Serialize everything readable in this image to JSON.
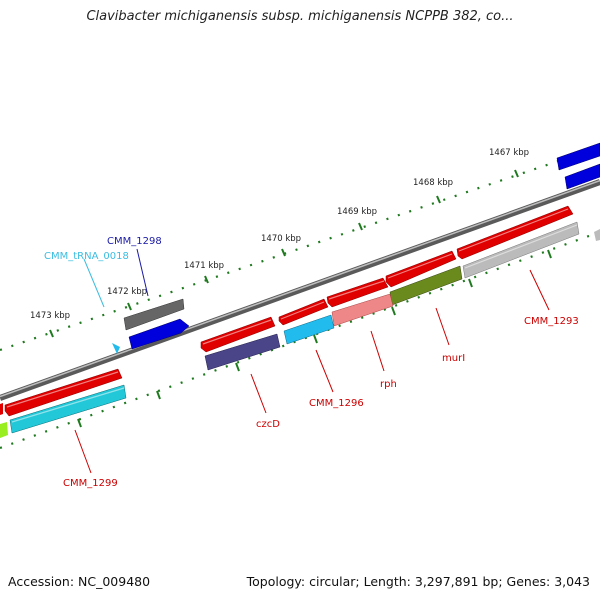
{
  "title": "Clavibacter michiganensis subsp. michiganensis NCPPB 382, co...",
  "footer": {
    "accession": "Accession: NC_009480",
    "topology": "Topology: circular; Length: 3,297,891 bp; Genes: 3,043"
  },
  "ruler_labels": [
    "1467 kbp",
    "1468 kbp",
    "1469 kbp",
    "1470 kbp",
    "1471 kbp",
    "1472 kbp",
    "1473 kbp"
  ],
  "gene_labels": [
    {
      "text": "CMM_1298",
      "color": "#1a1aa6"
    },
    {
      "text": "CMM_tRNA_0018",
      "color": "#3bbde0"
    },
    {
      "text": "CMM_1293",
      "color": "#cc0000"
    },
    {
      "text": "murI",
      "color": "#cc0000"
    },
    {
      "text": "rph",
      "color": "#cc0000"
    },
    {
      "text": "CMM_1296",
      "color": "#cc0000"
    },
    {
      "text": "czcD",
      "color": "#cc0000"
    },
    {
      "text": "CMM_1299",
      "color": "#cc0000"
    }
  ],
  "colors": {
    "red": "#e00000",
    "blue": "#0000dd",
    "gray": "#666666",
    "light_gray": "#bbbbbb",
    "cyan": "#22c8d8",
    "sky": "#22bbee",
    "olive": "#6b8a1e",
    "pink": "#ee8888",
    "navy_purple": "#4a4488",
    "lime": "#99ee22",
    "backbone": "#888888",
    "tick": "#1f7a1f"
  }
}
